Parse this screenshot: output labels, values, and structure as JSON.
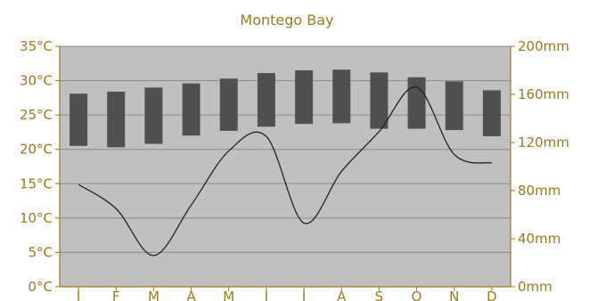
{
  "chart_data": {
    "type": "bar",
    "title": "Montego Bay",
    "categories": [
      "J",
      "F",
      "M",
      "A",
      "M",
      "J",
      "J",
      "A",
      "S",
      "O",
      "N",
      "D"
    ],
    "series": [
      {
        "kind": "range-bar",
        "axis": "left",
        "low": [
          20.5,
          20.3,
          20.8,
          22.0,
          22.7,
          23.3,
          23.7,
          23.8,
          23.0,
          23.0,
          22.8,
          21.9
        ],
        "high": [
          28.1,
          28.4,
          29.0,
          29.6,
          30.3,
          31.1,
          31.5,
          31.6,
          31.2,
          30.5,
          29.9,
          28.6
        ]
      },
      {
        "kind": "line",
        "axis": "right",
        "values": [
          85,
          65,
          26,
          68,
          113,
          125,
          53,
          96,
          129,
          166,
          110,
          103
        ]
      }
    ],
    "y_left": {
      "min": 0,
      "max": 35,
      "ticks": [
        0,
        5,
        10,
        15,
        20,
        25,
        30,
        35
      ],
      "ticklabels": [
        "0°C",
        "5°C",
        "10°C",
        "15°C",
        "20°C",
        "25°C",
        "30°C",
        "35°C"
      ]
    },
    "y_right": {
      "min": 0,
      "max": 200,
      "ticks": [
        0,
        40,
        80,
        120,
        160,
        200
      ],
      "ticklabels": [
        "0mm",
        "40mm",
        "80mm",
        "120mm",
        "160mm",
        "200mm"
      ]
    },
    "grid": true,
    "colors": {
      "text": "#9a7a1e",
      "plot_bg": "#c0c0c0",
      "grid": "#8a8a8a",
      "bar": "#505050",
      "line": "#222222"
    }
  }
}
